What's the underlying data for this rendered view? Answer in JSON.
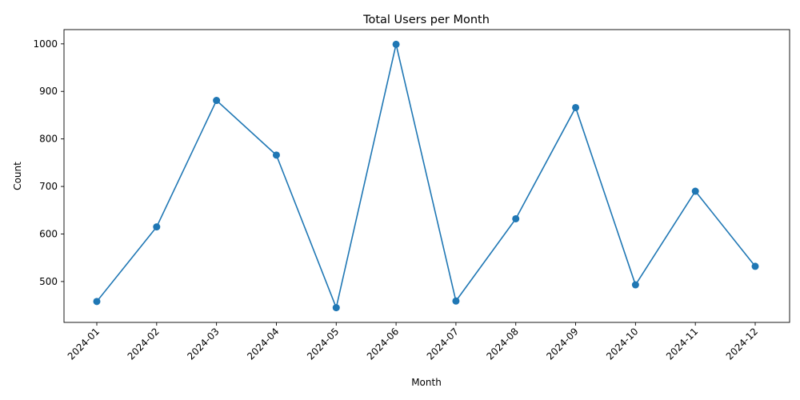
{
  "chart_data": {
    "type": "line",
    "title": "Total Users per Month",
    "xlabel": "Month",
    "ylabel": "Count",
    "categories": [
      "2024-01",
      "2024-02",
      "2024-03",
      "2024-04",
      "2024-05",
      "2024-06",
      "2024-07",
      "2024-08",
      "2024-09",
      "2024-10",
      "2024-11",
      "2024-12"
    ],
    "series": [
      {
        "values": [
          458,
          615,
          881,
          766,
          445,
          999,
          459,
          632,
          866,
          493,
          690,
          532
        ]
      }
    ],
    "ylim": [
      414,
      1030
    ],
    "yticks": [
      500,
      600,
      700,
      800,
      900,
      1000
    ],
    "grid": false,
    "legend": "none",
    "marker": "circle",
    "x_tick_rotation": 45,
    "colors": {
      "series": "#1f77b4"
    }
  }
}
